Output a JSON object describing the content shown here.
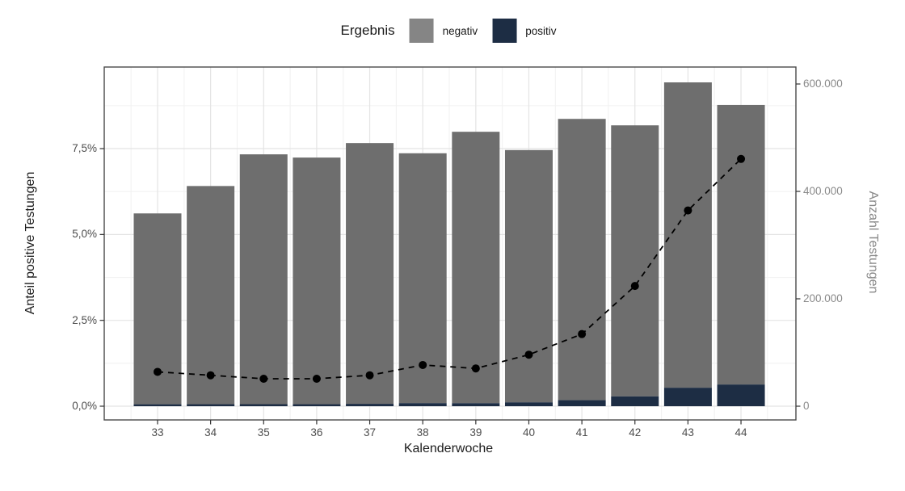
{
  "colors": {
    "negativ_bar": "#6e6e6e",
    "positiv_bar": "#1d2d44",
    "legend_key_negativ": "#858585",
    "legend_key_positiv": "#1d2d44",
    "line": "#000000",
    "grid_major": "#e4e4e4",
    "grid_minor": "#f2f2f2",
    "panel_border": "#4a4a4a",
    "tick": "#333333",
    "axis_text": "#4c4c4c",
    "right_axis_text": "#8a8a8a"
  },
  "legend": {
    "title": "Ergebnis",
    "items": [
      {
        "label": "negativ"
      },
      {
        "label": "positiv"
      }
    ]
  },
  "chart_data": {
    "type": "bar",
    "subtype": "stacked-bars-with-dashed-line-dual-axis",
    "title": "",
    "xlabel": "Kalenderwoche",
    "ylabel_left": "Anteil positive Testungen",
    "ylabel_right": "Anzahl Testungen",
    "categories": [
      33,
      34,
      35,
      36,
      37,
      38,
      39,
      40,
      41,
      42,
      43,
      44
    ],
    "series": [
      {
        "name": "negativ",
        "type": "bar",
        "axis": "right",
        "values": [
          355400,
          406300,
          465200,
          459300,
          485600,
          465300,
          505400,
          469800,
          523800,
          504700,
          568600,
          520600
        ]
      },
      {
        "name": "positiv",
        "type": "bar",
        "axis": "right",
        "values": [
          3600,
          3700,
          3800,
          3700,
          4400,
          5700,
          5600,
          7200,
          11200,
          18300,
          34400,
          40400
        ]
      },
      {
        "name": "Anteil positive Testungen",
        "type": "line",
        "axis": "left",
        "style": "dashed-with-points",
        "values_pct": [
          1.0,
          0.9,
          0.8,
          0.8,
          0.9,
          1.2,
          1.1,
          1.5,
          2.1,
          3.5,
          5.7,
          7.2
        ]
      }
    ],
    "y_left_ticks": [
      {
        "label": "0,0%",
        "value": 0
      },
      {
        "label": "2,5%",
        "value": 2.5
      },
      {
        "label": "5,0%",
        "value": 5.0
      },
      {
        "label": "7,5%",
        "value": 7.5
      }
    ],
    "y_left_minor": [
      1.25,
      3.75,
      6.25,
      8.75
    ],
    "y_right_ticks": [
      {
        "label": "0",
        "value": 0
      },
      {
        "label": "200.000",
        "value": 200000
      },
      {
        "label": "400.000",
        "value": 400000
      },
      {
        "label": "600.000",
        "value": 600000
      }
    ],
    "ylim_left": [
      0,
      9.9
    ],
    "ylim_right": [
      0,
      631000
    ],
    "grid": true,
    "legend_position": "top-center"
  }
}
